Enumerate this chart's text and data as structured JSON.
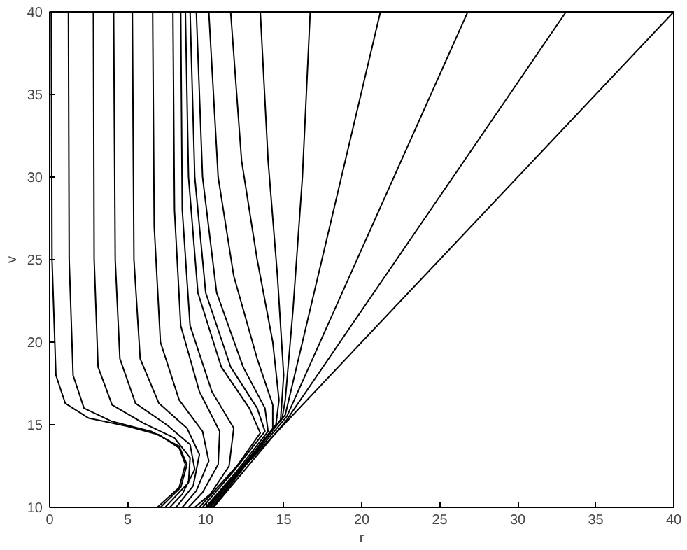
{
  "chart_data": {
    "type": "line",
    "xlabel": "r",
    "ylabel": "v",
    "xlim": [
      0,
      40
    ],
    "ylim": [
      10,
      40
    ],
    "xticks": [
      0,
      5,
      10,
      15,
      20,
      25,
      30,
      35,
      40
    ],
    "yticks": [
      10,
      15,
      20,
      25,
      30,
      35,
      40
    ],
    "grid": false,
    "marker": "none",
    "line_style": "solid",
    "series": [
      {
        "color": "#000000",
        "x": [
          0.1,
          0.15,
          0.4,
          1,
          2.5,
          5,
          7,
          8.3,
          8.7,
          8.3,
          6.9
        ],
        "values": [
          40,
          25,
          18,
          16.3,
          15.4,
          14.9,
          14.4,
          13.6,
          12.6,
          11.2,
          10
        ]
      },
      {
        "color": "#000000",
        "x": [
          1.2,
          1.25,
          1.5,
          2.2,
          4,
          6.5,
          8.3,
          8.8,
          8.4,
          7.1
        ],
        "values": [
          40,
          25,
          18,
          16,
          15.2,
          14.6,
          13.7,
          12.6,
          11.2,
          10
        ]
      },
      {
        "color": "#000000",
        "x": [
          2.8,
          2.85,
          3.1,
          4,
          6,
          8,
          9,
          8.9,
          7.4
        ],
        "values": [
          40,
          25,
          18.5,
          16.2,
          15.1,
          14.2,
          13,
          11.5,
          10
        ]
      },
      {
        "color": "#000000",
        "x": [
          4.1,
          4.2,
          4.5,
          5.5,
          7.5,
          9,
          9.3,
          8.5,
          7.7
        ],
        "values": [
          40,
          25,
          19,
          16.3,
          15,
          13.8,
          12.3,
          10.8,
          10
        ]
      },
      {
        "color": "#000000",
        "x": [
          5.3,
          5.4,
          5.8,
          7,
          8.8,
          9.6,
          9.2,
          8.1
        ],
        "values": [
          40,
          25,
          19,
          16.3,
          14.8,
          13.2,
          11.3,
          10
        ]
      },
      {
        "color": "#000000",
        "x": [
          6.6,
          6.7,
          7.1,
          8.3,
          9.8,
          10.2,
          9.4,
          8.5
        ],
        "values": [
          40,
          27,
          20,
          16.5,
          14.6,
          12.8,
          11,
          10
        ]
      },
      {
        "color": "#000000",
        "x": [
          7.9,
          8,
          8.4,
          9.6,
          10.9,
          10.8,
          9.8,
          8.9
        ],
        "values": [
          40,
          28,
          21,
          17,
          14.6,
          12.6,
          10.9,
          10
        ]
      },
      {
        "color": "#000000",
        "x": [
          8.4,
          8.5,
          9,
          10.4,
          11.8,
          11.5,
          10.3,
          9.3
        ],
        "values": [
          40,
          28,
          21,
          17,
          14.8,
          12.5,
          10.8,
          10
        ]
      },
      {
        "color": "#000000",
        "x": [
          8.7,
          8.9,
          9.5,
          11,
          12.8,
          13.5,
          12,
          9.6
        ],
        "values": [
          40,
          30,
          23,
          18.5,
          16,
          14.5,
          12.5,
          10
        ]
      },
      {
        "color": "#000000",
        "x": [
          9.0,
          9.3,
          10,
          11.6,
          13.3,
          13.8,
          11.8,
          9.8
        ],
        "values": [
          40,
          30,
          23,
          18.5,
          16,
          14.6,
          12.2,
          10
        ]
      },
      {
        "color": "#000000",
        "x": [
          9.4,
          9.8,
          10.7,
          12.4,
          13.8,
          14,
          12,
          10
        ],
        "values": [
          40,
          30,
          23,
          18.5,
          16,
          14.6,
          12.2,
          10
        ]
      },
      {
        "color": "#000000",
        "x": [
          10.2,
          10.8,
          11.8,
          13.3,
          14.3,
          14.3,
          12.1,
          10.1
        ],
        "values": [
          40,
          30,
          24,
          19,
          16.2,
          14.7,
          12.2,
          10
        ]
      },
      {
        "color": "#000000",
        "x": [
          11.6,
          12.3,
          13.3,
          14.3,
          14.7,
          14.5,
          12.2,
          10.2
        ],
        "values": [
          40,
          31,
          25,
          20,
          16.5,
          15,
          12.3,
          10
        ]
      },
      {
        "color": "#000000",
        "x": [
          13.5,
          14,
          14.6,
          15,
          14.8,
          12.3,
          10.3
        ],
        "values": [
          40,
          31,
          24,
          18,
          15.3,
          12.4,
          10
        ]
      },
      {
        "color": "#000000",
        "x": [
          16.7,
          16.2,
          15.6,
          15.1,
          14.9,
          12.4,
          10.4
        ],
        "values": [
          40,
          30,
          22,
          16.5,
          15.4,
          12.4,
          10
        ]
      },
      {
        "color": "#000000",
        "x": [
          21.2,
          15.1,
          12.5,
          10.5
        ],
        "values": [
          40,
          15.6,
          12.6,
          10
        ]
      },
      {
        "color": "#000000",
        "x": [
          26.8,
          15.2,
          12.6,
          10.5
        ],
        "values": [
          40,
          15.5,
          12.6,
          10
        ]
      },
      {
        "color": "#000000",
        "x": [
          33.1,
          15.2,
          10.5
        ],
        "values": [
          40,
          15.3,
          10
        ]
      },
      {
        "color": "#000000",
        "x": [
          40,
          10
        ],
        "values": [
          40,
          10
        ]
      }
    ]
  }
}
